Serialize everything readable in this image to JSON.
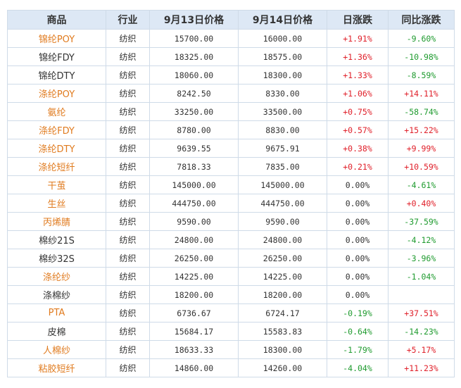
{
  "columns": [
    "商品",
    "行业",
    "9月13日价格",
    "9月14日价格",
    "日涨跌",
    "同比涨跌"
  ],
  "colors": {
    "orange": "#e07b1f",
    "up": "#e0202a",
    "down": "#1f9b2f",
    "text": "#333333"
  },
  "rows": [
    {
      "name": "锦纶POY",
      "name_color": "orange",
      "industry": "纺织",
      "p13": "15700.00",
      "p14": "16000.00",
      "day": "+1.91%",
      "day_color": "red",
      "yoy": "-9.60%",
      "yoy_color": "green"
    },
    {
      "name": "锦纶FDY",
      "name_color": "black",
      "industry": "纺织",
      "p13": "18325.00",
      "p14": "18575.00",
      "day": "+1.36%",
      "day_color": "red",
      "yoy": "-10.98%",
      "yoy_color": "green"
    },
    {
      "name": "锦纶DTY",
      "name_color": "black",
      "industry": "纺织",
      "p13": "18060.00",
      "p14": "18300.00",
      "day": "+1.33%",
      "day_color": "red",
      "yoy": "-8.59%",
      "yoy_color": "green"
    },
    {
      "name": "涤纶POY",
      "name_color": "orange",
      "industry": "纺织",
      "p13": "8242.50",
      "p14": "8330.00",
      "day": "+1.06%",
      "day_color": "red",
      "yoy": "+14.11%",
      "yoy_color": "red"
    },
    {
      "name": "氨纶",
      "name_color": "orange",
      "industry": "纺织",
      "p13": "33250.00",
      "p14": "33500.00",
      "day": "+0.75%",
      "day_color": "red",
      "yoy": "-58.74%",
      "yoy_color": "green"
    },
    {
      "name": "涤纶FDY",
      "name_color": "orange",
      "industry": "纺织",
      "p13": "8780.00",
      "p14": "8830.00",
      "day": "+0.57%",
      "day_color": "red",
      "yoy": "+15.22%",
      "yoy_color": "red"
    },
    {
      "name": "涤纶DTY",
      "name_color": "orange",
      "industry": "纺织",
      "p13": "9639.55",
      "p14": "9675.91",
      "day": "+0.38%",
      "day_color": "red",
      "yoy": "+9.99%",
      "yoy_color": "red"
    },
    {
      "name": "涤纶短纤",
      "name_color": "orange",
      "industry": "纺织",
      "p13": "7818.33",
      "p14": "7835.00",
      "day": "+0.21%",
      "day_color": "red",
      "yoy": "+10.59%",
      "yoy_color": "red"
    },
    {
      "name": "干茧",
      "name_color": "orange",
      "industry": "纺织",
      "p13": "145000.00",
      "p14": "145000.00",
      "day": "0.00%",
      "day_color": "black",
      "yoy": "-4.61%",
      "yoy_color": "green"
    },
    {
      "name": "生丝",
      "name_color": "orange",
      "industry": "纺织",
      "p13": "444750.00",
      "p14": "444750.00",
      "day": "0.00%",
      "day_color": "black",
      "yoy": "+0.40%",
      "yoy_color": "red"
    },
    {
      "name": "丙烯腈",
      "name_color": "orange",
      "industry": "纺织",
      "p13": "9590.00",
      "p14": "9590.00",
      "day": "0.00%",
      "day_color": "black",
      "yoy": "-37.59%",
      "yoy_color": "green"
    },
    {
      "name": "棉纱21S",
      "name_color": "black",
      "industry": "纺织",
      "p13": "24800.00",
      "p14": "24800.00",
      "day": "0.00%",
      "day_color": "black",
      "yoy": "-4.12%",
      "yoy_color": "green"
    },
    {
      "name": "棉纱32S",
      "name_color": "black",
      "industry": "纺织",
      "p13": "26250.00",
      "p14": "26250.00",
      "day": "0.00%",
      "day_color": "black",
      "yoy": "-3.96%",
      "yoy_color": "green"
    },
    {
      "name": "涤纶纱",
      "name_color": "orange",
      "industry": "纺织",
      "p13": "14225.00",
      "p14": "14225.00",
      "day": "0.00%",
      "day_color": "black",
      "yoy": "-1.04%",
      "yoy_color": "green"
    },
    {
      "name": "涤棉纱",
      "name_color": "black",
      "industry": "纺织",
      "p13": "18200.00",
      "p14": "18200.00",
      "day": "0.00%",
      "day_color": "black",
      "yoy": "",
      "yoy_color": "black"
    },
    {
      "name": "PTA",
      "name_color": "orange",
      "industry": "纺织",
      "p13": "6736.67",
      "p14": "6724.17",
      "day": "-0.19%",
      "day_color": "green",
      "yoy": "+37.51%",
      "yoy_color": "red"
    },
    {
      "name": "皮棉",
      "name_color": "black",
      "industry": "纺织",
      "p13": "15684.17",
      "p14": "15583.83",
      "day": "-0.64%",
      "day_color": "green",
      "yoy": "-14.23%",
      "yoy_color": "green"
    },
    {
      "name": "人棉纱",
      "name_color": "orange",
      "industry": "纺织",
      "p13": "18633.33",
      "p14": "18300.00",
      "day": "-1.79%",
      "day_color": "green",
      "yoy": "+5.17%",
      "yoy_color": "red"
    },
    {
      "name": "粘胶短纤",
      "name_color": "orange",
      "industry": "纺织",
      "p13": "14860.00",
      "p14": "14260.00",
      "day": "-4.04%",
      "day_color": "green",
      "yoy": "+11.23%",
      "yoy_color": "red"
    }
  ]
}
